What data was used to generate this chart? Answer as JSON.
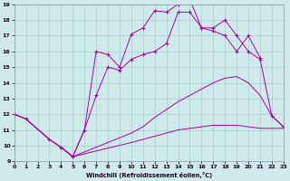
{
  "xlabel": "Windchill (Refroidissement éolien,°C)",
  "bg_color": "#ceeaea",
  "grid_color": "#aacece",
  "line_color": "#aa00aa",
  "xlim": [
    0,
    23
  ],
  "ylim": [
    9,
    19
  ],
  "xticks": [
    0,
    1,
    2,
    3,
    4,
    5,
    6,
    7,
    8,
    9,
    10,
    11,
    12,
    13,
    14,
    15,
    16,
    17,
    18,
    19,
    20,
    21,
    22,
    23
  ],
  "yticks": [
    9,
    10,
    11,
    12,
    13,
    14,
    15,
    16,
    17,
    18,
    19
  ],
  "s0x": [
    0,
    1,
    3,
    4,
    5,
    10,
    11,
    12,
    13,
    14,
    15,
    16,
    17,
    18,
    19,
    20,
    21,
    22,
    23
  ],
  "s0y": [
    12.0,
    11.7,
    10.4,
    9.9,
    9.3,
    10.2,
    10.4,
    10.6,
    10.8,
    11.0,
    11.1,
    11.2,
    11.3,
    11.3,
    11.3,
    11.2,
    11.1,
    11.1,
    11.1
  ],
  "s1x": [
    0,
    1,
    3,
    4,
    5,
    10,
    11,
    12,
    13,
    14,
    15,
    16,
    17,
    18,
    19,
    20,
    21,
    22,
    23
  ],
  "s1y": [
    12.0,
    11.7,
    10.4,
    9.9,
    9.3,
    10.8,
    11.2,
    11.8,
    12.3,
    12.8,
    13.2,
    13.6,
    14.0,
    14.3,
    14.4,
    14.0,
    13.2,
    11.9,
    11.2
  ],
  "s2x": [
    0,
    1,
    3,
    4,
    5,
    6,
    7,
    8,
    9,
    10,
    11,
    12,
    13,
    14,
    15,
    16,
    17,
    18,
    19,
    20,
    21,
    22,
    23
  ],
  "s2y": [
    12.0,
    11.7,
    10.4,
    9.9,
    9.3,
    11.0,
    13.2,
    15.0,
    14.8,
    15.5,
    15.8,
    16.0,
    16.5,
    18.5,
    18.5,
    17.5,
    17.5,
    18.0,
    17.0,
    16.0,
    15.5,
    11.9,
    11.2
  ],
  "s3x": [
    4,
    5,
    6,
    7,
    8,
    9,
    10,
    11,
    12,
    13,
    14,
    15,
    16,
    17,
    18,
    19,
    20,
    21
  ],
  "s3y": [
    9.9,
    9.3,
    11.0,
    16.0,
    15.8,
    15.0,
    17.1,
    17.5,
    18.6,
    18.5,
    19.0,
    19.3,
    17.5,
    17.3,
    17.0,
    16.0,
    17.0,
    15.6
  ]
}
